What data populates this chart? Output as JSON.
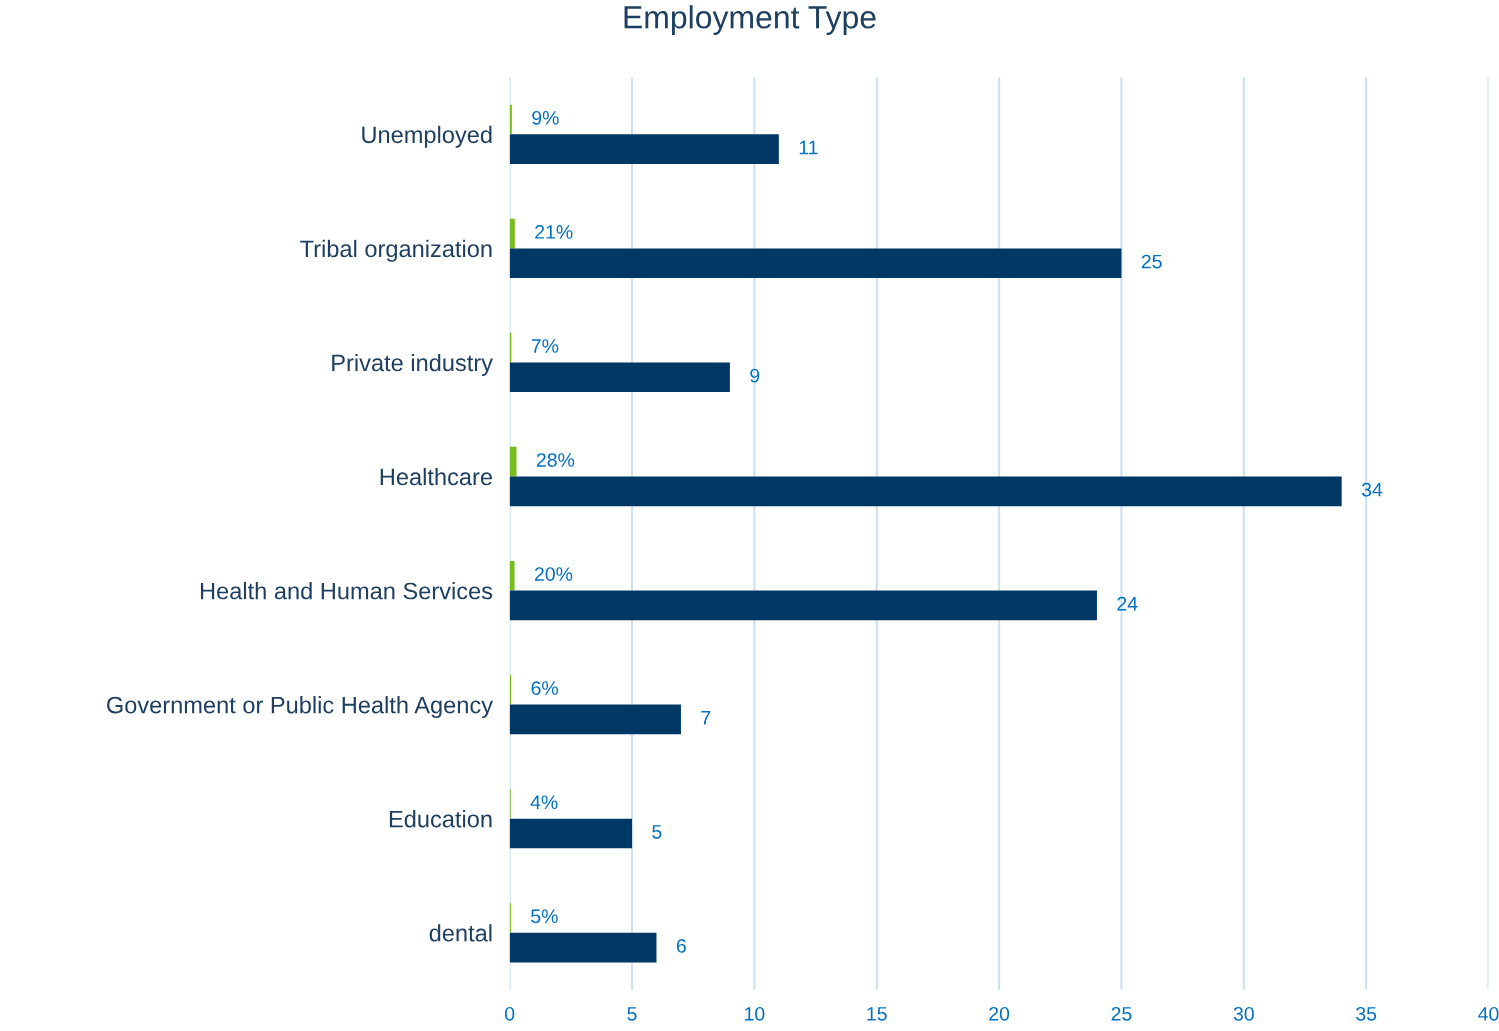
{
  "chart_data": {
    "type": "bar",
    "orientation": "horizontal",
    "title": "Employment Type",
    "categories": [
      "Unemployed",
      "Tribal organization",
      "Private industry",
      "Healthcare",
      "Health and Human Services",
      "Government or Public Health Agency",
      "Education",
      "dental"
    ],
    "series": [
      {
        "color": "#77bc1f",
        "values": [
          0.09,
          0.21,
          0.07,
          0.28,
          0.2,
          0.06,
          0.04,
          0.05
        ],
        "value_labels": [
          "9%",
          "21%",
          "7%",
          "28%",
          "20%",
          "6%",
          "4%",
          "5%"
        ]
      },
      {
        "color": "#003865",
        "values": [
          11,
          25,
          9,
          34,
          24,
          7,
          5,
          6
        ],
        "value_labels": [
          "11",
          "25",
          "9",
          "34",
          "24",
          "7",
          "5",
          "6"
        ]
      }
    ],
    "xlim": [
      0,
      40
    ],
    "xticks": [
      0,
      5,
      10,
      15,
      20,
      25,
      30,
      35,
      40
    ],
    "grid": "x",
    "legend": false
  }
}
